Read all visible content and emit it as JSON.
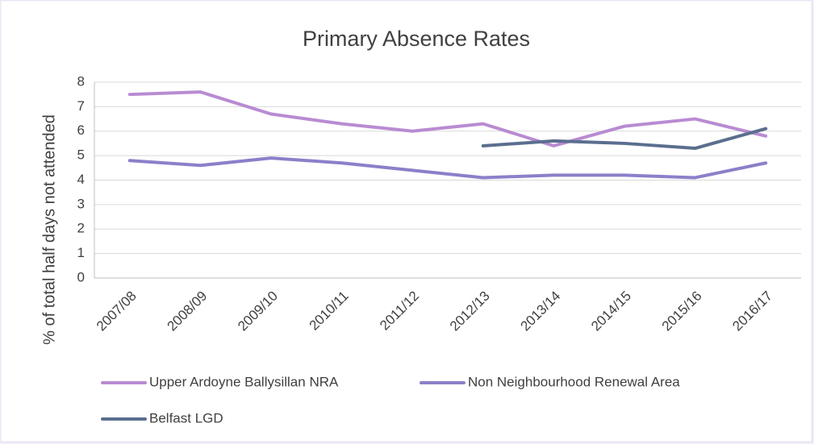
{
  "chart_data": {
    "type": "line",
    "title": "Primary Absence Rates",
    "y_label": "% of total half days not attended",
    "categories": [
      "2007/08",
      "2008/09",
      "2009/10",
      "2010/11",
      "2011/12",
      "2012/13",
      "2013/14",
      "2014/15",
      "2015/16",
      "2016/17"
    ],
    "series": [
      {
        "name": "Upper Ardoyne Ballysillan NRA",
        "color": "#b98bd2",
        "values": [
          7.5,
          7.6,
          6.7,
          6.3,
          6.0,
          6.3,
          5.4,
          6.2,
          6.5,
          5.8
        ]
      },
      {
        "name": "Non Neighbourhood Renewal Area",
        "color": "#8b80c9",
        "values": [
          4.8,
          4.6,
          4.9,
          4.7,
          4.4,
          4.1,
          4.2,
          4.2,
          4.1,
          4.7
        ]
      },
      {
        "name": "Belfast LGD",
        "color": "#5b6e8e",
        "values": [
          null,
          null,
          null,
          null,
          null,
          5.4,
          5.6,
          5.5,
          5.3,
          6.1
        ]
      }
    ],
    "ylim": [
      0,
      8
    ],
    "yticks": [
      0,
      1,
      2,
      3,
      4,
      5,
      6,
      7,
      8
    ],
    "grid": true,
    "legend": "bottom"
  }
}
